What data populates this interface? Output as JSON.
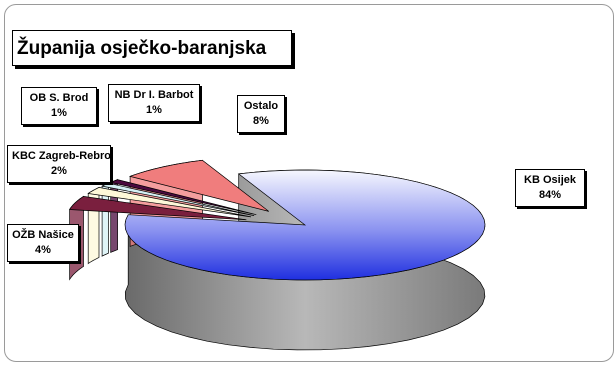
{
  "chart_data": {
    "type": "pie",
    "style": "3d-exploded",
    "title": "Županija osječko-baranjska",
    "slices": [
      {
        "label": "KB Osijek",
        "value": 84,
        "display": "84%",
        "color": "#d8dcf0"
      },
      {
        "label": "OŽB Našice",
        "value": 4,
        "display": "4%",
        "color": "#7a1f3e"
      },
      {
        "label": "KBC Zagreb-Rebro",
        "value": 2,
        "display": "2%",
        "color": "#fdf8d8"
      },
      {
        "label": "OB S. Brod",
        "value": 1,
        "display": "1%",
        "color": "#d4f0f4"
      },
      {
        "label": "NB Dr I. Barbot",
        "value": 1,
        "display": "1%",
        "color": "#4a0a3e"
      },
      {
        "label": "Ostalo",
        "value": 8,
        "display": "8%",
        "color": "#f07d7d"
      }
    ],
    "legend": "none"
  }
}
